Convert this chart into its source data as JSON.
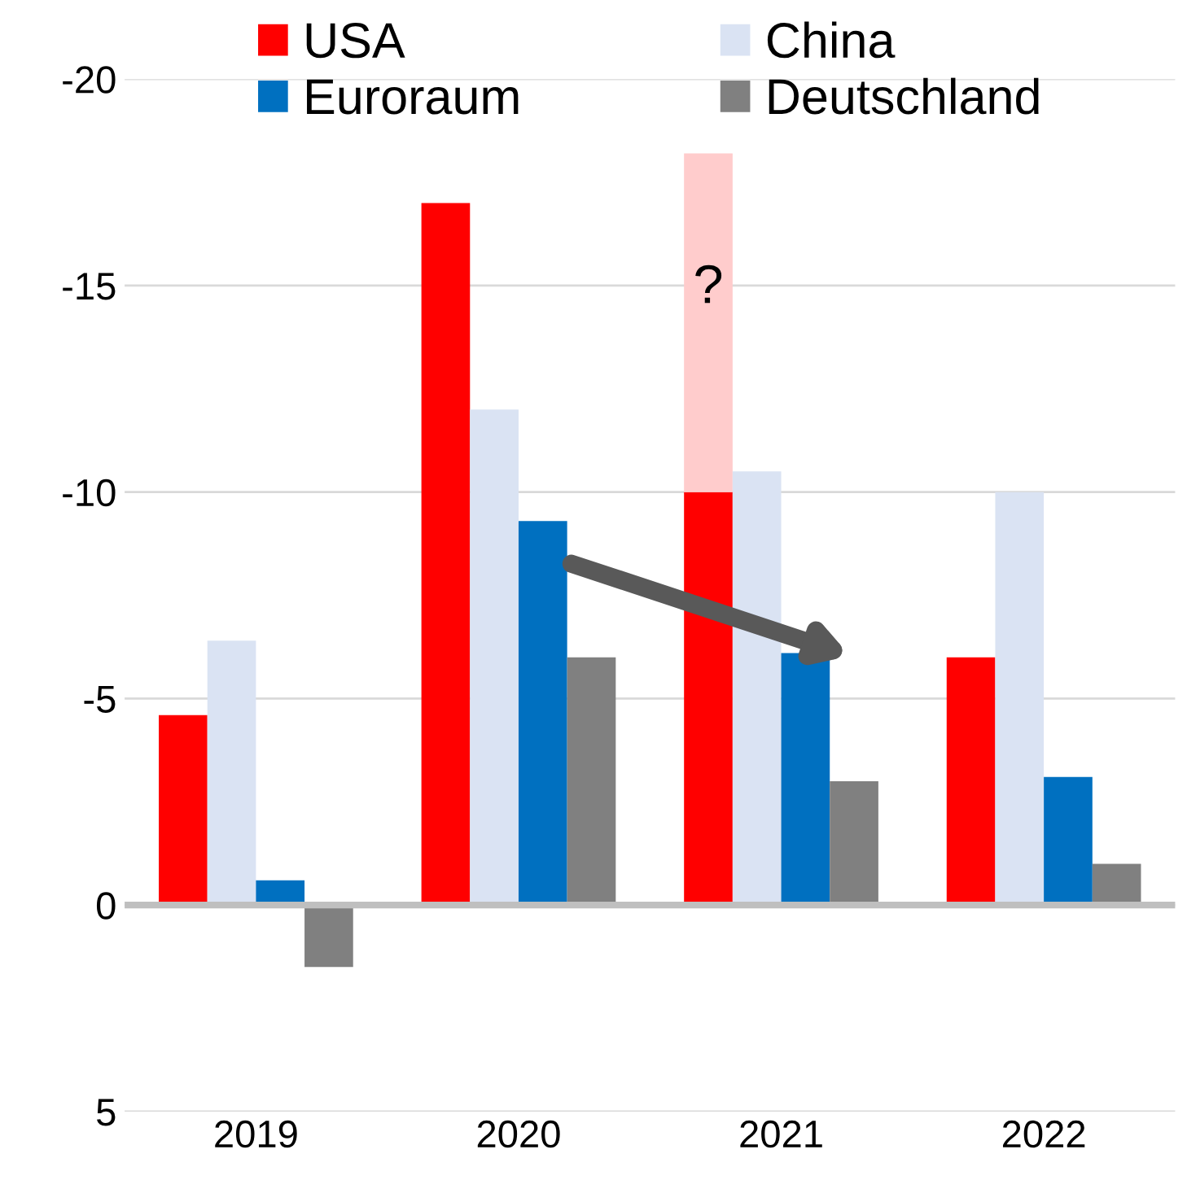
{
  "chart_data": {
    "type": "bar",
    "categories": [
      "2019",
      "2020",
      "2021",
      "2022"
    ],
    "series": [
      {
        "name": "USA",
        "color": "#ff0000",
        "values": [
          -4.6,
          -17,
          -10,
          -6
        ]
      },
      {
        "color": "#ffcccc",
        "values": [
          null,
          null,
          -8.2,
          null
        ],
        "base": [
          null,
          null,
          -10,
          null
        ]
      },
      {
        "name": "China",
        "color": "#dae3f3",
        "values": [
          -6.4,
          -12,
          -10.5,
          -10
        ]
      },
      {
        "name": "Euroraum",
        "color": "#0070c0",
        "values": [
          -0.6,
          -9.3,
          -6.1,
          -3.1
        ]
      },
      {
        "name": "Deutschland",
        "color": "#808080",
        "values": [
          1.5,
          -6,
          -3,
          -1
        ]
      }
    ],
    "ylim": [
      5,
      -20
    ],
    "yticks": [
      -20,
      -15,
      -10,
      -5,
      0,
      5
    ],
    "grid": "y",
    "legend": "top",
    "ref_lines": [
      {
        "axis": "y",
        "value": 0,
        "color": "#bfbfbf"
      }
    ],
    "annotations": [
      "?"
    ]
  }
}
